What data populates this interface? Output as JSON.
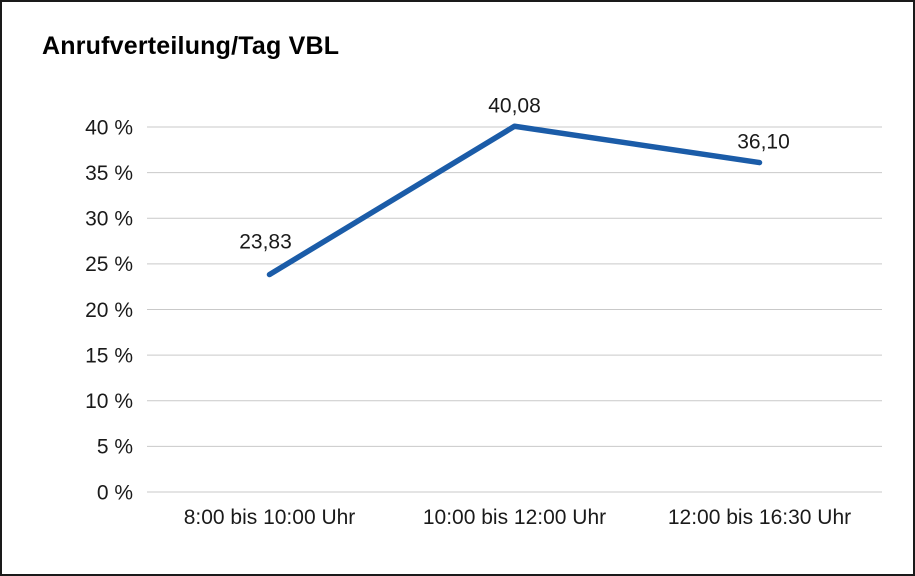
{
  "chart_data": {
    "type": "line",
    "title": "Anrufverteilung/Tag VBL",
    "categories": [
      "8:00 bis 10:00 Uhr",
      "10:00 bis 12:00 Uhr",
      "12:00 bis 16:30 Uhr"
    ],
    "values": [
      23.83,
      40.08,
      36.1
    ],
    "value_labels": [
      "23,83",
      "40,08",
      "36,10"
    ],
    "ylim": [
      0,
      40
    ],
    "ytick_step": 5,
    "ytick_labels": [
      "0 %",
      "5 %",
      "10 %",
      "15 %",
      "20 %",
      "25 %",
      "30 %",
      "35 %",
      "40 %"
    ],
    "xlabel": "",
    "ylabel": "",
    "grid": "horizontal",
    "legend": "none",
    "line_color": "#1b5ca8",
    "grid_color": "#c9c9c9",
    "text_color": "#1a1a1a",
    "background": "#ffffff",
    "border_color": "#1a1a1a"
  }
}
